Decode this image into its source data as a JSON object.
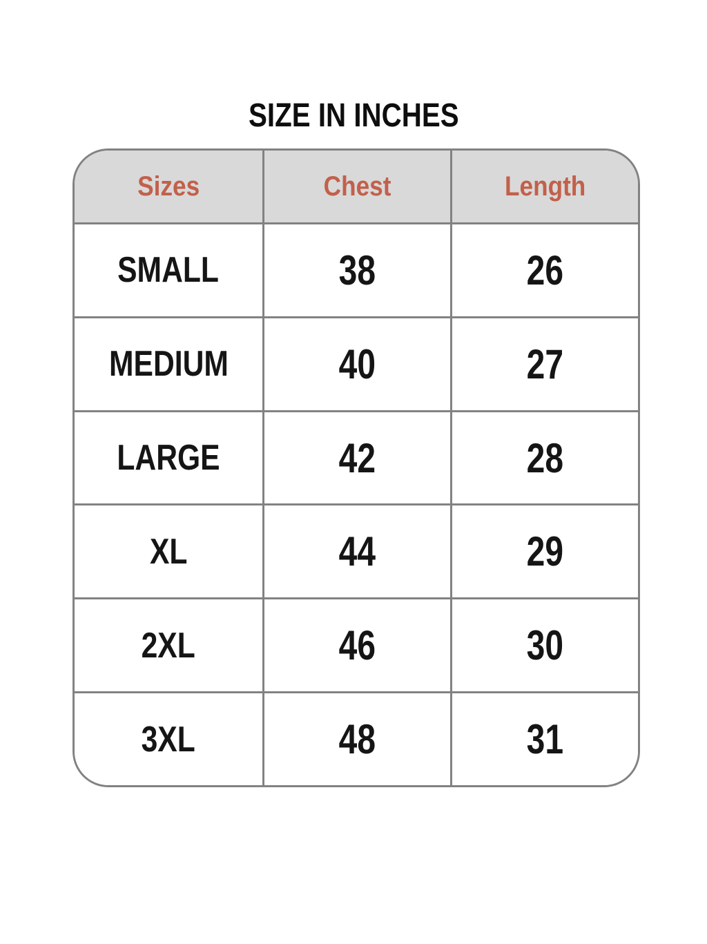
{
  "page": {
    "title": "SIZE IN INCHES"
  },
  "table": {
    "headers": [
      "Sizes",
      "Chest",
      "Length"
    ],
    "rows": [
      {
        "size": "SMALL",
        "chest": "38",
        "length": "26"
      },
      {
        "size": "MEDIUM",
        "chest": "40",
        "length": "27"
      },
      {
        "size": "LARGE",
        "chest": "42",
        "length": "28"
      },
      {
        "size": "XL",
        "chest": "44",
        "length": "29"
      },
      {
        "size": "2XL",
        "chest": "46",
        "length": "30"
      },
      {
        "size": "3XL",
        "chest": "48",
        "length": "31"
      }
    ]
  },
  "colors": {
    "header_text": "#c2604b",
    "header_background": "#d9d9d9",
    "border": "#828282",
    "body_text": "#151515",
    "page_background": "#ffffff"
  },
  "chart_data": {
    "type": "table",
    "title": "SIZE IN INCHES",
    "columns": [
      "Sizes",
      "Chest",
      "Length"
    ],
    "units": "inches",
    "rows": [
      [
        "SMALL",
        38,
        26
      ],
      [
        "MEDIUM",
        40,
        27
      ],
      [
        "LARGE",
        42,
        28
      ],
      [
        "XL",
        44,
        29
      ],
      [
        "2XL",
        46,
        30
      ],
      [
        "3XL",
        48,
        31
      ]
    ]
  }
}
